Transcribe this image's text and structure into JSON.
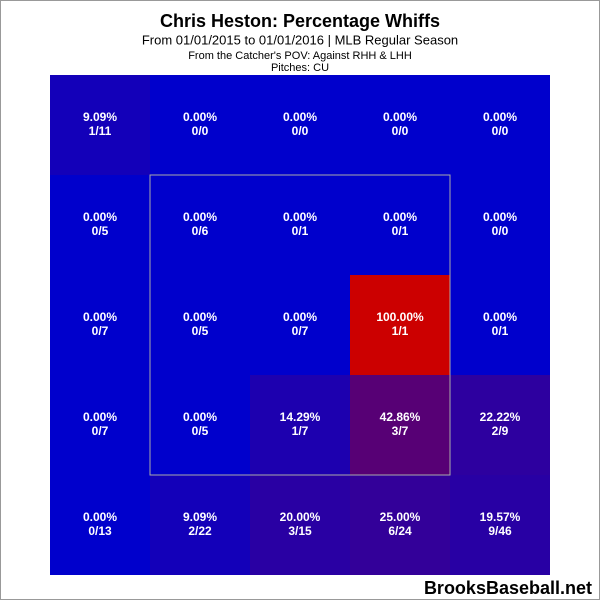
{
  "chart_data": {
    "type": "heatmap",
    "title": "Chris Heston: Percentage Whiffs",
    "subtitle": "From 01/01/2015 to 01/01/2016 | MLB Regular Season",
    "notes": [
      "From the Catcher's POV:  Against RHH & LHH",
      "Pitches:  CU"
    ],
    "watermark": "BrooksBaseball.net",
    "values": [
      [
        9.09,
        0,
        0,
        0,
        0
      ],
      [
        0,
        0,
        0,
        0,
        0
      ],
      [
        0,
        0,
        0,
        100,
        0
      ],
      [
        0,
        0,
        14.29,
        42.86,
        22.22
      ],
      [
        0,
        9.09,
        20,
        25,
        19.57
      ]
    ],
    "value_labels": [
      [
        "9.09%",
        "0.00%",
        "0.00%",
        "0.00%",
        "0.00%"
      ],
      [
        "0.00%",
        "0.00%",
        "0.00%",
        "0.00%",
        "0.00%"
      ],
      [
        "0.00%",
        "0.00%",
        "0.00%",
        "100.00%",
        "0.00%"
      ],
      [
        "0.00%",
        "0.00%",
        "14.29%",
        "42.86%",
        "22.22%"
      ],
      [
        "0.00%",
        "9.09%",
        "20.00%",
        "25.00%",
        "19.57%"
      ]
    ],
    "counts": [
      [
        "1/11",
        "0/0",
        "0/0",
        "0/0",
        "0/0"
      ],
      [
        "0/5",
        "0/6",
        "0/1",
        "0/1",
        "0/0"
      ],
      [
        "0/7",
        "0/5",
        "0/7",
        "1/1",
        "0/1"
      ],
      [
        "0/7",
        "0/5",
        "1/7",
        "3/7",
        "2/9"
      ],
      [
        "0/13",
        "2/22",
        "3/15",
        "6/24",
        "9/46"
      ]
    ],
    "vlim": [
      0,
      100
    ],
    "colorscale": [
      "#0000cc",
      "#cc0000"
    ]
  }
}
